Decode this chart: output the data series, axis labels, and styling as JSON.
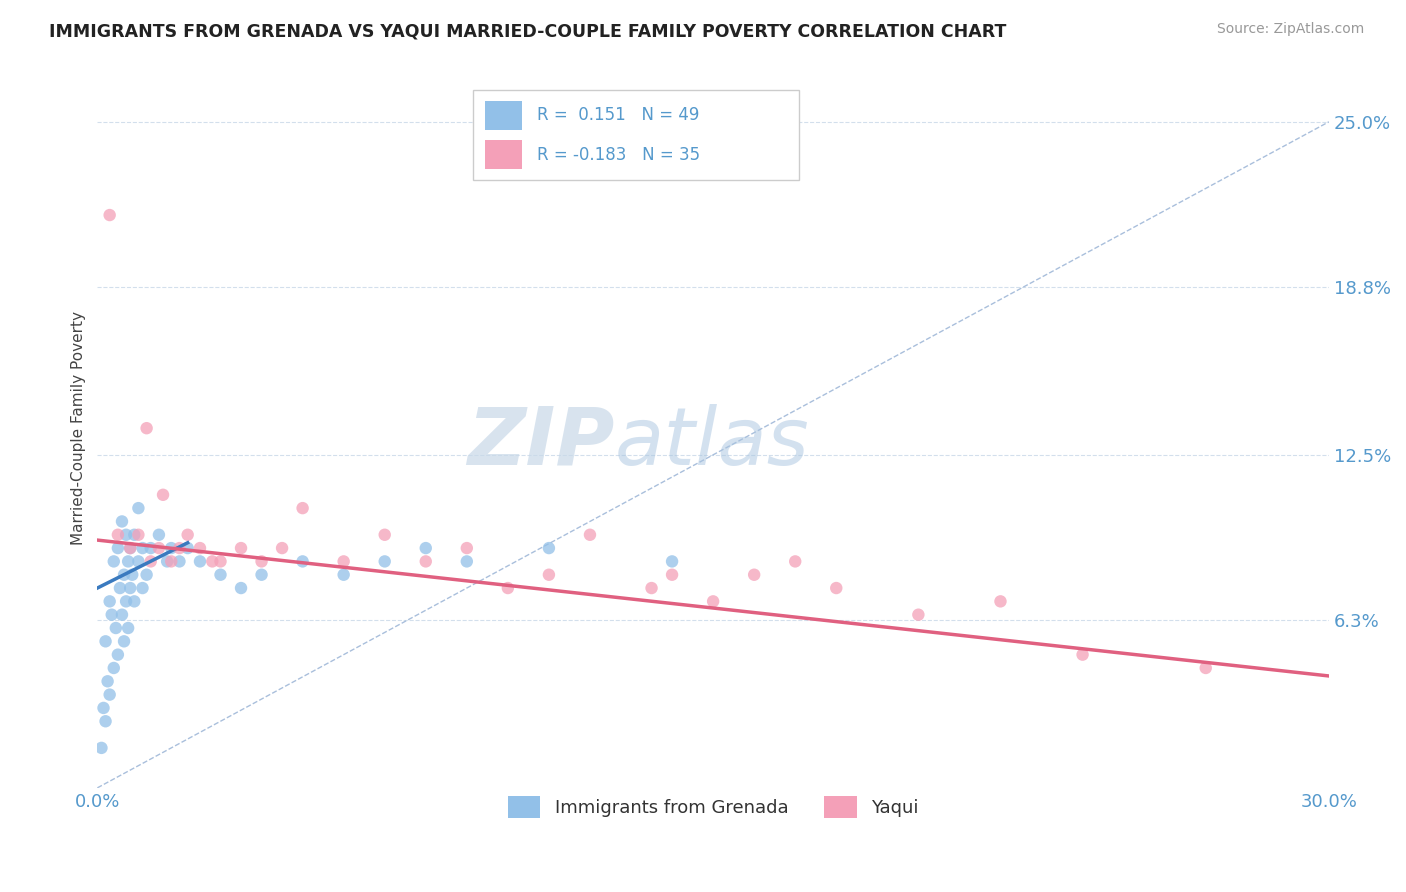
{
  "title": "IMMIGRANTS FROM GRENADA VS YAQUI MARRIED-COUPLE FAMILY POVERTY CORRELATION CHART",
  "source": "Source: ZipAtlas.com",
  "ylabel": "Married-Couple Family Poverty",
  "legend_labels": [
    "Immigrants from Grenada",
    "Yaqui"
  ],
  "xlim": [
    0.0,
    30.0
  ],
  "ylim": [
    0.0,
    27.0
  ],
  "yticks": [
    6.3,
    12.5,
    18.8,
    25.0
  ],
  "xticks": [
    0.0,
    30.0
  ],
  "xticklabels": [
    "0.0%",
    "30.0%"
  ],
  "yticklabels": [
    "6.3%",
    "12.5%",
    "18.8%",
    "25.0%"
  ],
  "r1": 0.151,
  "n1": 49,
  "r2": -0.183,
  "n2": 35,
  "color_blue": "#92c0e8",
  "color_pink": "#f4a0b8",
  "color_blue_line": "#3a7abf",
  "color_pink_line": "#e06080",
  "color_diag": "#a0b8d8",
  "color_grid": "#c8d8e8",
  "color_tick": "#5599cc",
  "watermark_zip": "ZIP",
  "watermark_atlas": "atlas",
  "scatter_blue_x": [
    0.1,
    0.15,
    0.2,
    0.2,
    0.25,
    0.3,
    0.3,
    0.35,
    0.4,
    0.4,
    0.45,
    0.5,
    0.5,
    0.55,
    0.6,
    0.6,
    0.65,
    0.65,
    0.7,
    0.7,
    0.75,
    0.75,
    0.8,
    0.8,
    0.85,
    0.9,
    0.9,
    1.0,
    1.0,
    1.1,
    1.1,
    1.2,
    1.3,
    1.5,
    1.7,
    1.8,
    2.0,
    2.2,
    2.5,
    3.0,
    3.5,
    4.0,
    5.0,
    6.0,
    7.0,
    8.0,
    9.0,
    11.0,
    14.0
  ],
  "scatter_blue_y": [
    1.5,
    3.0,
    2.5,
    5.5,
    4.0,
    7.0,
    3.5,
    6.5,
    8.5,
    4.5,
    6.0,
    9.0,
    5.0,
    7.5,
    10.0,
    6.5,
    8.0,
    5.5,
    9.5,
    7.0,
    8.5,
    6.0,
    7.5,
    9.0,
    8.0,
    9.5,
    7.0,
    10.5,
    8.5,
    9.0,
    7.5,
    8.0,
    9.0,
    9.5,
    8.5,
    9.0,
    8.5,
    9.0,
    8.5,
    8.0,
    7.5,
    8.0,
    8.5,
    8.0,
    8.5,
    9.0,
    8.5,
    9.0,
    8.5
  ],
  "scatter_pink_x": [
    0.3,
    0.5,
    0.8,
    1.0,
    1.2,
    1.3,
    1.5,
    1.6,
    1.8,
    2.0,
    2.2,
    2.5,
    2.8,
    3.0,
    3.5,
    4.0,
    4.5,
    5.0,
    6.0,
    7.0,
    8.0,
    9.0,
    10.0,
    11.0,
    12.0,
    13.5,
    14.0,
    15.0,
    16.0,
    17.0,
    18.0,
    20.0,
    22.0,
    24.0,
    27.0
  ],
  "scatter_pink_y": [
    21.5,
    9.5,
    9.0,
    9.5,
    13.5,
    8.5,
    9.0,
    11.0,
    8.5,
    9.0,
    9.5,
    9.0,
    8.5,
    8.5,
    9.0,
    8.5,
    9.0,
    10.5,
    8.5,
    9.5,
    8.5,
    9.0,
    7.5,
    8.0,
    9.5,
    7.5,
    8.0,
    7.0,
    8.0,
    8.5,
    7.5,
    6.5,
    7.0,
    5.0,
    4.5
  ],
  "blue_trend_x": [
    0.0,
    2.2
  ],
  "blue_trend_y": [
    7.5,
    9.2
  ],
  "pink_trend_x": [
    0.0,
    30.0
  ],
  "pink_trend_y": [
    9.3,
    4.2
  ]
}
